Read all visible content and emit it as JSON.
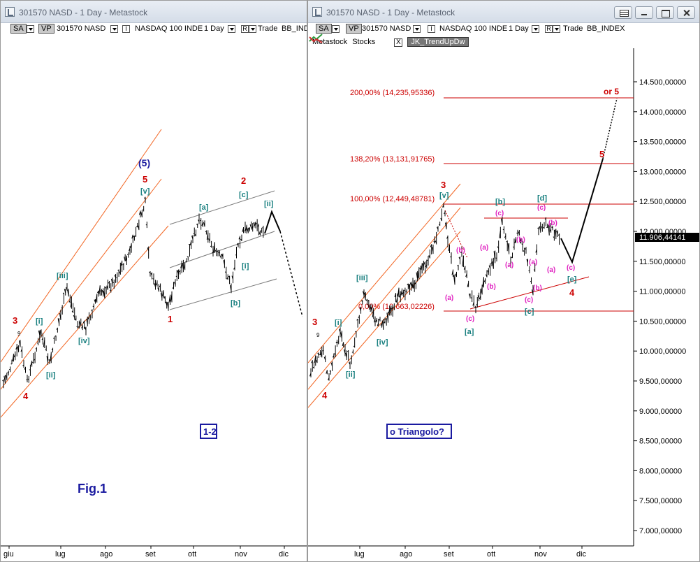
{
  "left": {
    "title": "301570 NASD - 1 Day - Metastock",
    "toolbar": {
      "sa": "SA",
      "vp": "VP",
      "symbol": "301570 NASD",
      "index": "NASDAQ 100 INDE",
      "period": "1 Day",
      "r": "R",
      "trade": "Trade",
      "bb": "BB_IND"
    },
    "months": [
      "giu",
      "lug",
      "ago",
      "set",
      "ott",
      "nov",
      "dic"
    ],
    "labels": {
      "fig": "Fig.1",
      "box": "1-2",
      "w5b": "(5)",
      "w5": "5",
      "v": "[v]",
      "w3": "3",
      "i": "[i]",
      "ii": "[ii]",
      "iii": "[iii]",
      "iv": "[iv]",
      "w4": "4",
      "w1": "1",
      "w2": "2",
      "a": "[a]",
      "b": "[b]",
      "c": "[c]",
      "ii2": "[ii]",
      "i2": "[i]",
      "nine": "9"
    }
  },
  "right": {
    "title": "301570 NASD - 1 Day - Metastock",
    "toolbar": {
      "sa": "SA",
      "vp": "VP",
      "symbol": "301570 NASD",
      "index": "NASDAQ 100 INDE",
      "period": "1 Day",
      "r": "R",
      "trade": "Trade",
      "bb": "BB_INDEX"
    },
    "row2": {
      "source": "Metastock",
      "stocks": "Stocks",
      "x": "X",
      "indicator": "JK_TrendUpDw"
    },
    "months": [
      "lug",
      "ago",
      "set",
      "ott",
      "nov",
      "dic"
    ],
    "fib": [
      {
        "pct": "200,00%",
        "val": "(14,235,95336)"
      },
      {
        "pct": "138,20%",
        "val": "(13,131,91765)"
      },
      {
        "pct": "100,00%",
        "val": "(12,449,48781)"
      },
      {
        "pct": "0,00%",
        "val": "(10,663,02226)"
      }
    ],
    "price_axis": [
      "14.500,00000",
      "14.000,00000",
      "13.500,00000",
      "13.000,00000",
      "12.500,00000",
      "12.000,00000",
      "11.500,00000",
      "11.000,00000",
      "10.500,00000",
      "10.000,00000",
      "9.500,00000",
      "9.000,00000",
      "8.500,00000",
      "8.000,00000",
      "7.500,00000",
      "7.000,00000"
    ],
    "last_price": "11.906,44141",
    "labels": {
      "or5": "or 5",
      "w5": "5",
      "w3": "3",
      "v": "[v]",
      "w4": "4",
      "triangolo": "o Triangolo?",
      "w3l": "3",
      "w4l": "4",
      "i": "[i]",
      "ii": "[ii]",
      "iii": "[iii]",
      "iv": "[iv]",
      "a": "[a]",
      "b": "[b]",
      "c": "[c]",
      "d": "[d]",
      "e": "[e]",
      "pa": "(a)",
      "pb": "(b)",
      "pc": "(c)",
      "nine": "9"
    }
  },
  "colors": {
    "orange": "#f26522",
    "red": "#cc0000",
    "teal": "#1a8080",
    "magenta": "#e020c0",
    "navy": "#1a1aa0",
    "grey": "#777777"
  }
}
